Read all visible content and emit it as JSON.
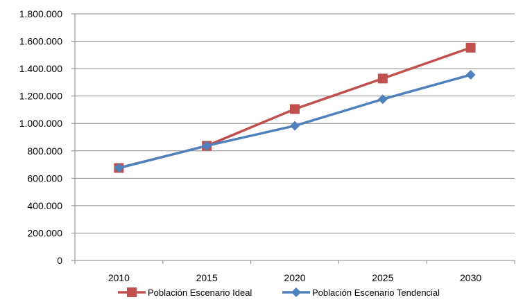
{
  "chart_data": {
    "type": "line",
    "categories": [
      "2010",
      "2015",
      "2020",
      "2025",
      "2030"
    ],
    "yticks": [
      "0",
      "200.000",
      "400.000",
      "600.000",
      "800.000",
      "1.000.000",
      "1.200.000",
      "1.400.000",
      "1.600.000",
      "1.800.000"
    ],
    "ylim": [
      0,
      1800000
    ],
    "grid": true,
    "legend_position": "bottom",
    "series": [
      {
        "name": "Población Escenario Ideal",
        "color": "#C0504D",
        "marker": "square",
        "values": [
          675000,
          837000,
          1105000,
          1328000,
          1553000
        ]
      },
      {
        "name": "Población Escenario Tendencial",
        "color": "#4F81BD",
        "marker": "diamond",
        "values": [
          675000,
          837000,
          983000,
          1177000,
          1355000
        ]
      }
    ]
  }
}
